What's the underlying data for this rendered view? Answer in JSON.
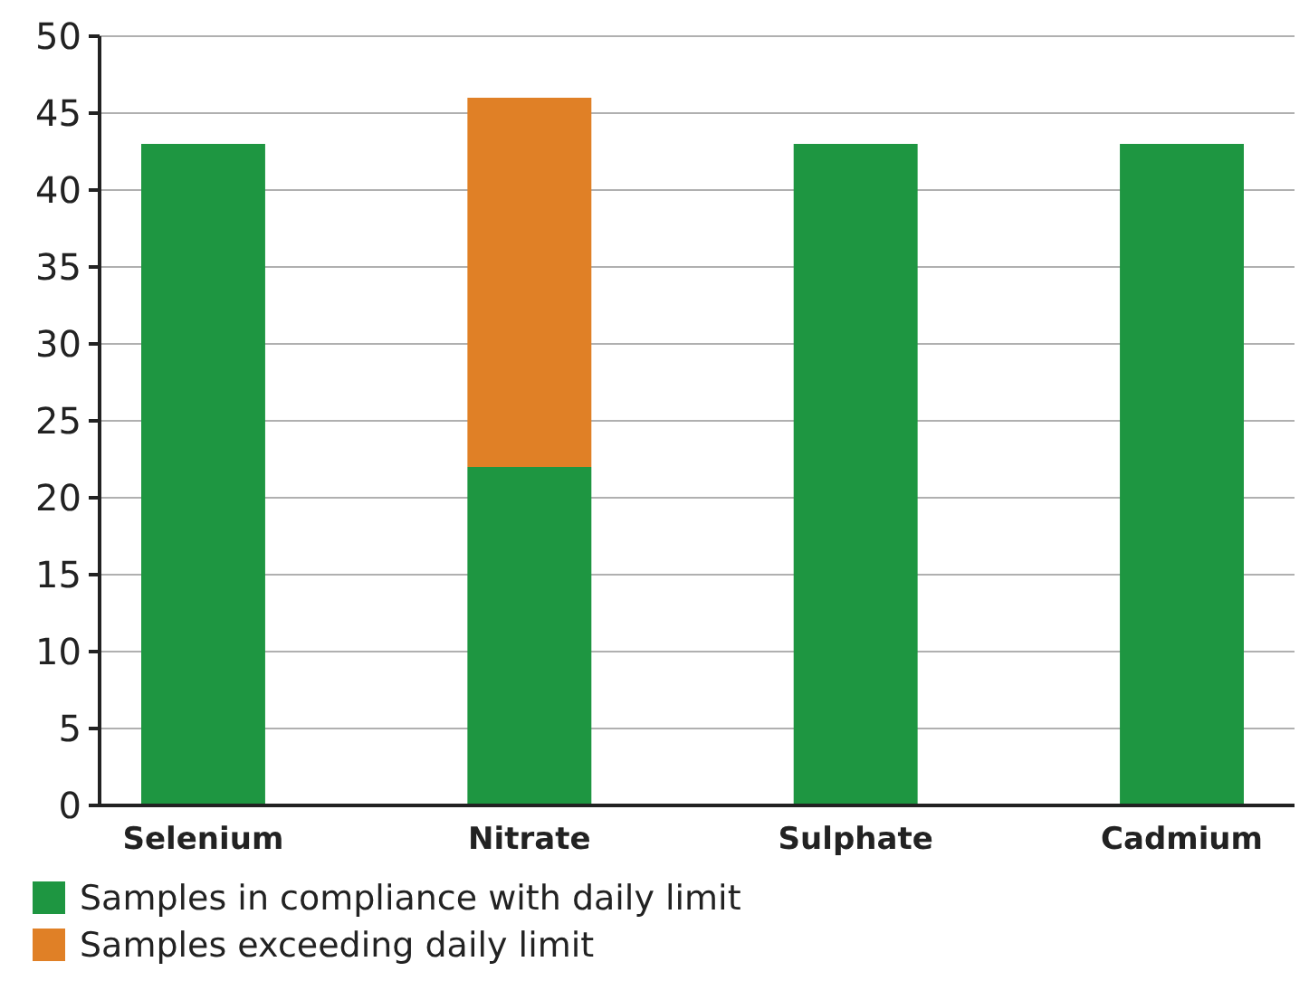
{
  "chart_data": {
    "type": "bar",
    "stacked": true,
    "categories": [
      "Selenium",
      "Nitrate",
      "Sulphate",
      "Cadmium"
    ],
    "series": [
      {
        "name": "Samples in compliance with daily limit",
        "color": "#1e9641",
        "values": [
          43,
          22,
          43,
          43
        ]
      },
      {
        "name": "Samples exceeding daily limit",
        "color": "#e08026",
        "values": [
          0,
          24,
          0,
          0
        ]
      }
    ],
    "ylim": [
      0,
      50
    ],
    "yticks": [
      0,
      5,
      10,
      15,
      20,
      25,
      30,
      35,
      40,
      45,
      50
    ],
    "grid": "y",
    "legend": "bottom left"
  }
}
